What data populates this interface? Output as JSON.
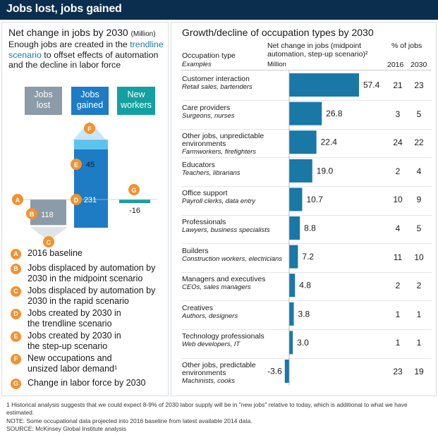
{
  "header": {
    "title": "Jobs lost, jobs gained"
  },
  "left_panel": {
    "title": "Net change in jobs by 2030",
    "title_unit": "(Million)",
    "intro_before": "Enough jobs are created in the",
    "intro_highlight": "trendline scenario",
    "intro_after": "to offset effects of automation and the decline in labor force",
    "categories": [
      {
        "line1": "Jobs",
        "line2": "lost"
      },
      {
        "line1": "Jobs",
        "line2": "gained"
      },
      {
        "line1": "New",
        "line2": "workers"
      }
    ],
    "waterfall": {
      "jobs_displaced_midpoint": 118,
      "jobs_created_trendline": 231,
      "jobs_created_stepup": 45,
      "labor_force_change": -16,
      "labels": {
        "lost": "118",
        "gained": "231",
        "stepup": "45",
        "labor": "-16"
      }
    },
    "markers": {
      "a": "A",
      "b": "B",
      "c": "C",
      "d": "D",
      "e": "E",
      "f": "F",
      "g": "G"
    },
    "legend": [
      {
        "letter": "A",
        "text": "2016 baseline"
      },
      {
        "letter": "B",
        "text": "Jobs displaced by automation by 2030 in the midpoint scenario"
      },
      {
        "letter": "C",
        "text": "Jobs displaced by automation by 2030 in the rapid scenario"
      },
      {
        "letter": "D",
        "text": "Jobs created by 2030 in the trendline scenario"
      },
      {
        "letter": "E",
        "text": "Jobs created by 2030 in the step-up scenario"
      },
      {
        "letter": "F",
        "text": "New occupations and unsized labor demand¹"
      },
      {
        "letter": "G",
        "text": "Change in labor force by 2030"
      }
    ]
  },
  "right_panel": {
    "title": "Growth/decline of occupation types by 2030",
    "col_occ": "Occupation type",
    "col_occ_sub": "Examples",
    "col_net_line1": "Net change in jobs (midpoint",
    "col_net_line2": "automation, step-up scenario)²",
    "col_net_unit": "Million",
    "col_pct": "% of jobs",
    "col_2016": "2016",
    "col_2030": "2030"
  },
  "chart_data": {
    "type": "bar",
    "orientation": "horizontal",
    "title": "Growth/decline of occupation types by 2030",
    "value_label": "Net change in jobs (midpoint automation, step-up scenario)",
    "unit": "Million",
    "rows": [
      {
        "name": "Customer interaction",
        "examples": "Retail sales, bartenders",
        "value": 57.4,
        "label": "57.4",
        "pct2016": "21",
        "pct2030": "23"
      },
      {
        "name": "Care providers",
        "examples": "Surgeons, nurses",
        "value": 26.8,
        "label": "26.8",
        "pct2016": "3",
        "pct2030": "5"
      },
      {
        "name": "Other jobs, unpredictable environments",
        "examples": "Farmworkers, firefighters",
        "value": 22.4,
        "label": "22.4",
        "pct2016": "24",
        "pct2030": "22"
      },
      {
        "name": "Educators",
        "examples": "Teachers, librarians",
        "value": 19.0,
        "label": "19.0",
        "pct2016": "2",
        "pct2030": "4"
      },
      {
        "name": "Office support",
        "examples": "Payroll clerks, data entry",
        "value": 10.7,
        "label": "10.7",
        "pct2016": "10",
        "pct2030": "9"
      },
      {
        "name": "Professionals",
        "examples": "Lawyers, business specialists",
        "value": 8.8,
        "label": "8.8",
        "pct2016": "4",
        "pct2030": "5"
      },
      {
        "name": "Builders",
        "examples": "Construction workers, electricians",
        "value": 7.2,
        "label": "7.2",
        "pct2016": "11",
        "pct2030": "10"
      },
      {
        "name": "Managers and executives",
        "examples": "CEOs, sales managers",
        "value": 4.8,
        "label": "4.8",
        "pct2016": "2",
        "pct2030": "2"
      },
      {
        "name": "Creatives",
        "examples": "Authors, designers",
        "value": 3.8,
        "label": "3.8",
        "pct2016": "1",
        "pct2030": "1"
      },
      {
        "name": "Technology professionals",
        "examples": "Web developers, IT",
        "value": 3.0,
        "label": "3.0",
        "pct2016": "1",
        "pct2030": "1"
      },
      {
        "name": "Other jobs, predictable environments",
        "examples": "Machinists, cooks",
        "value": -3.6,
        "label": "-3.6",
        "pct2016": "23",
        "pct2030": "19"
      }
    ],
    "colors": {
      "bar": "#1a78a6",
      "lost": "#8b9ba8",
      "gained": "#1d7cc4",
      "stepup": "#5cc3ee",
      "new_workers": "#14a0a0",
      "marker": "#f2922f"
    }
  },
  "footnotes": {
    "note1": "1  Historical analysis suggests that we could expect 8-9% of 2030 labor supply will be in \"new jobs\" relative to today, which is additional to what we have estimated.",
    "note2": "NOTE: Some occupational data projected into 2016 baseline from latest available 2014 data.",
    "source": "SOURCE:  McKinsey Global Institute analysis"
  }
}
